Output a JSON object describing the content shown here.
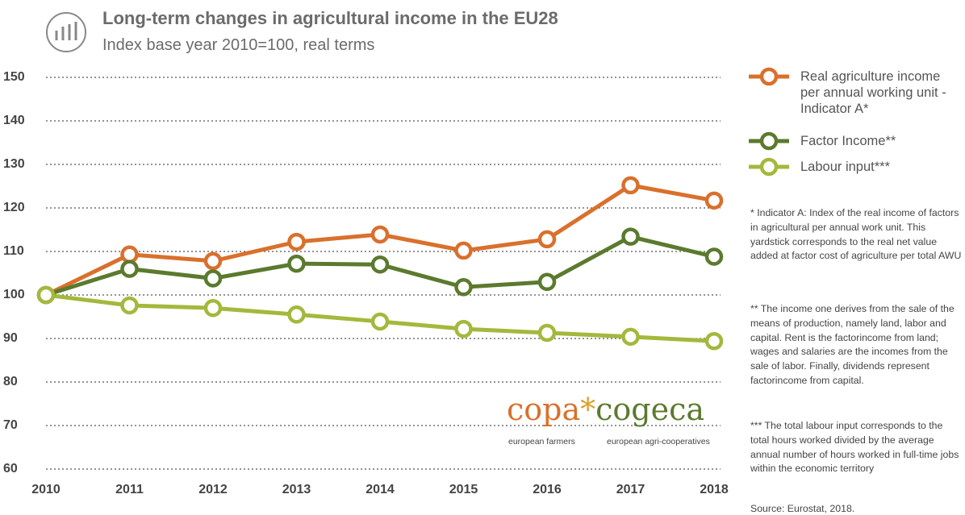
{
  "chart_data": {
    "type": "line",
    "title": "Long-term changes in agricultural income in the EU28",
    "subtitle": "Index base year 2010=100, real terms",
    "categories": [
      "2010",
      "2011",
      "2012",
      "2013",
      "2014",
      "2015",
      "2016",
      "2017",
      "2018"
    ],
    "series": [
      {
        "name": "Real agriculture income per annual working unit - Indicator A*",
        "color": "#d9702c",
        "values": [
          100,
          109.3,
          107.8,
          112.2,
          113.9,
          110.2,
          112.8,
          125.2,
          121.7
        ]
      },
      {
        "name": "Factor Income**",
        "color": "#5b7a2e",
        "values": [
          100,
          106,
          103.8,
          107.2,
          107,
          101.8,
          103,
          113.4,
          108.8
        ]
      },
      {
        "name": "Labour input***",
        "color": "#a4b83c",
        "values": [
          100,
          97.6,
          97,
          95.5,
          93.9,
          92.2,
          91.3,
          90.4,
          89.4
        ]
      }
    ],
    "ylim": [
      60,
      150
    ],
    "yticks": [
      60,
      70,
      80,
      90,
      100,
      110,
      120,
      130,
      140,
      150
    ],
    "grid": true,
    "notes": [
      "* Indicator A: Index of the real income of factors in agricultural per annual work unit.  This yardstick corresponds to the real net value added at factor cost of agriculture per total AWU",
      "** The income one derives from the sale of the means of production, namely land, labor and capital. Rent is the factorincome from land; wages and salaries are the incomes from the sale of labor. Finally, dividends represent factorincome from capital.",
      "*** The total labour input corresponds to the total hours worked divided by the average annual number of hours worked in full-time jobs within the economic territory"
    ],
    "source": "Source: Eurostat, 2018.",
    "logo": {
      "left": "copa",
      "mark": "*",
      "right": "cogeca",
      "left_caption": "european farmers",
      "right_caption": "european agri-cooperatives"
    }
  }
}
